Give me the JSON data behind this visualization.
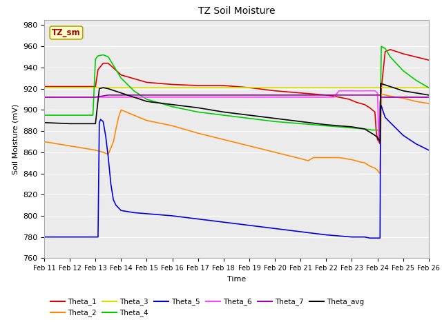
{
  "title": "TZ Soil Moisture",
  "xlabel": "Time",
  "ylabel": "Soil Moisture (mV)",
  "ylim": [
    760,
    985
  ],
  "yticks": [
    760,
    780,
    800,
    820,
    840,
    860,
    880,
    900,
    920,
    940,
    960,
    980
  ],
  "xtick_labels": [
    "Feb 11",
    "Feb 12",
    "Feb 13",
    "Feb 14",
    "Feb 15",
    "Feb 16",
    "Feb 17",
    "Feb 18",
    "Feb 19",
    "Feb 20",
    "Feb 21",
    "Feb 22",
    "Feb 23",
    "Feb 24",
    "Feb 25",
    "Feb 26"
  ],
  "fig_facecolor": "#ffffff",
  "plot_bg_color": "#ebebeb",
  "label_box_text": "TZ_sm",
  "label_box_facecolor": "#ffffcc",
  "label_box_edgecolor": "#b8a000",
  "label_box_textcolor": "#aa0000",
  "series": {
    "Theta_1": {
      "color": "#dd0000",
      "points": [
        [
          0,
          922
        ],
        [
          1.0,
          922
        ],
        [
          2.0,
          922
        ],
        [
          2.1,
          938
        ],
        [
          2.3,
          944
        ],
        [
          2.5,
          944
        ],
        [
          3.0,
          933
        ],
        [
          4.0,
          926
        ],
        [
          5.0,
          924
        ],
        [
          6.0,
          923
        ],
        [
          7.0,
          923
        ],
        [
          8.0,
          921
        ],
        [
          9.0,
          918
        ],
        [
          10.0,
          916
        ],
        [
          10.5,
          915
        ],
        [
          11.0,
          914
        ],
        [
          11.3,
          913
        ],
        [
          11.5,
          912
        ],
        [
          11.7,
          911
        ],
        [
          11.9,
          910
        ],
        [
          12.0,
          909
        ],
        [
          12.2,
          907
        ],
        [
          12.5,
          905
        ],
        [
          12.7,
          902
        ],
        [
          12.8,
          900
        ],
        [
          12.9,
          898
        ],
        [
          12.95,
          880
        ],
        [
          13.0,
          872
        ],
        [
          13.05,
          870
        ],
        [
          13.1,
          868
        ],
        [
          13.15,
          920
        ],
        [
          13.3,
          955
        ],
        [
          13.5,
          957
        ],
        [
          14.0,
          953
        ],
        [
          14.5,
          950
        ],
        [
          15.0,
          947
        ]
      ]
    },
    "Theta_2": {
      "color": "#ff8800",
      "points": [
        [
          0,
          870
        ],
        [
          0.5,
          868
        ],
        [
          1.0,
          866
        ],
        [
          1.5,
          864
        ],
        [
          2.0,
          862
        ],
        [
          2.3,
          860
        ],
        [
          2.5,
          858
        ],
        [
          2.7,
          870
        ],
        [
          2.8,
          882
        ],
        [
          2.9,
          893
        ],
        [
          3.0,
          900
        ],
        [
          3.2,
          898
        ],
        [
          3.5,
          895
        ],
        [
          4.0,
          890
        ],
        [
          5.0,
          885
        ],
        [
          6.0,
          878
        ],
        [
          7.0,
          872
        ],
        [
          8.0,
          866
        ],
        [
          9.0,
          860
        ],
        [
          9.5,
          857
        ],
        [
          10.0,
          854
        ],
        [
          10.3,
          852
        ],
        [
          10.5,
          855
        ],
        [
          11.0,
          855
        ],
        [
          11.5,
          855
        ],
        [
          12.0,
          853
        ],
        [
          12.3,
          851
        ],
        [
          12.5,
          850
        ],
        [
          12.7,
          847
        ],
        [
          12.9,
          845
        ],
        [
          13.0,
          843
        ],
        [
          13.05,
          841
        ],
        [
          13.1,
          840
        ],
        [
          13.15,
          915
        ],
        [
          13.5,
          913
        ],
        [
          14.0,
          911
        ],
        [
          14.5,
          908
        ],
        [
          15.0,
          906
        ]
      ]
    },
    "Theta_3": {
      "color": "#dddd00",
      "points": [
        [
          0,
          921
        ],
        [
          2.0,
          921
        ],
        [
          2.3,
          921
        ],
        [
          2.5,
          921
        ],
        [
          3.0,
          921
        ],
        [
          4.0,
          921
        ],
        [
          5.0,
          921
        ],
        [
          6.0,
          921
        ],
        [
          7.0,
          921
        ],
        [
          8.0,
          921
        ],
        [
          9.0,
          921
        ],
        [
          10.0,
          921
        ],
        [
          11.0,
          921
        ],
        [
          11.5,
          921
        ],
        [
          12.0,
          921
        ],
        [
          12.5,
          921
        ],
        [
          12.9,
          921
        ],
        [
          13.0,
          921
        ],
        [
          13.1,
          921
        ],
        [
          13.15,
          921
        ],
        [
          13.5,
          921
        ],
        [
          14.0,
          921
        ],
        [
          14.5,
          921
        ],
        [
          15.0,
          921
        ]
      ]
    },
    "Theta_4": {
      "color": "#00cc00",
      "points": [
        [
          0,
          895
        ],
        [
          1.0,
          895
        ],
        [
          1.5,
          895
        ],
        [
          1.9,
          895
        ],
        [
          2.0,
          948
        ],
        [
          2.1,
          951
        ],
        [
          2.3,
          952
        ],
        [
          2.5,
          950
        ],
        [
          2.7,
          942
        ],
        [
          3.0,
          930
        ],
        [
          3.5,
          918
        ],
        [
          4.0,
          910
        ],
        [
          5.0,
          903
        ],
        [
          6.0,
          898
        ],
        [
          7.0,
          895
        ],
        [
          8.0,
          892
        ],
        [
          9.0,
          889
        ],
        [
          10.0,
          887
        ],
        [
          11.0,
          885
        ],
        [
          12.0,
          883
        ],
        [
          12.5,
          882
        ],
        [
          12.8,
          881
        ],
        [
          12.9,
          881
        ],
        [
          13.0,
          881
        ],
        [
          13.05,
          880
        ],
        [
          13.1,
          880
        ],
        [
          13.15,
          960
        ],
        [
          13.3,
          958
        ],
        [
          13.5,
          950
        ],
        [
          14.0,
          937
        ],
        [
          14.5,
          928
        ],
        [
          15.0,
          921
        ]
      ]
    },
    "Theta_5": {
      "color": "#0000dd",
      "points": [
        [
          0,
          780
        ],
        [
          1.0,
          780
        ],
        [
          2.0,
          780
        ],
        [
          2.1,
          780
        ],
        [
          2.15,
          888
        ],
        [
          2.2,
          891
        ],
        [
          2.3,
          889
        ],
        [
          2.4,
          875
        ],
        [
          2.5,
          855
        ],
        [
          2.6,
          830
        ],
        [
          2.7,
          815
        ],
        [
          2.8,
          810
        ],
        [
          3.0,
          805
        ],
        [
          3.5,
          803
        ],
        [
          4.0,
          802
        ],
        [
          5.0,
          800
        ],
        [
          6.0,
          797
        ],
        [
          7.0,
          794
        ],
        [
          8.0,
          791
        ],
        [
          9.0,
          788
        ],
        [
          10.0,
          785
        ],
        [
          11.0,
          782
        ],
        [
          11.5,
          781
        ],
        [
          12.0,
          780
        ],
        [
          12.5,
          780
        ],
        [
          12.7,
          779
        ],
        [
          12.9,
          779
        ],
        [
          13.0,
          779
        ],
        [
          13.05,
          779
        ],
        [
          13.1,
          779
        ],
        [
          13.12,
          900
        ],
        [
          13.15,
          904
        ],
        [
          13.2,
          900
        ],
        [
          13.3,
          893
        ],
        [
          13.5,
          888
        ],
        [
          14.0,
          876
        ],
        [
          14.5,
          868
        ],
        [
          15.0,
          862
        ]
      ]
    },
    "Theta_6": {
      "color": "#ff44ff",
      "points": [
        [
          0,
          912
        ],
        [
          2.0,
          912
        ],
        [
          2.5,
          912
        ],
        [
          3.0,
          912
        ],
        [
          4.0,
          912
        ],
        [
          5.0,
          912
        ],
        [
          6.0,
          912
        ],
        [
          7.0,
          912
        ],
        [
          8.0,
          912
        ],
        [
          9.0,
          912
        ],
        [
          10.0,
          912
        ],
        [
          11.0,
          912
        ],
        [
          11.3,
          912
        ],
        [
          11.5,
          918
        ],
        [
          12.0,
          918
        ],
        [
          12.5,
          918
        ],
        [
          12.7,
          918
        ],
        [
          12.8,
          918
        ],
        [
          12.9,
          918
        ],
        [
          13.0,
          916
        ],
        [
          13.05,
          870
        ],
        [
          13.1,
          908
        ],
        [
          13.15,
          912
        ],
        [
          13.5,
          912
        ],
        [
          14.0,
          912
        ],
        [
          14.5,
          912
        ],
        [
          15.0,
          912
        ]
      ]
    },
    "Theta_7": {
      "color": "#9900aa",
      "points": [
        [
          0,
          912
        ],
        [
          2.0,
          912
        ],
        [
          2.5,
          914
        ],
        [
          3.0,
          914
        ],
        [
          4.0,
          914
        ],
        [
          5.0,
          914
        ],
        [
          6.0,
          914
        ],
        [
          7.0,
          914
        ],
        [
          8.0,
          914
        ],
        [
          9.0,
          914
        ],
        [
          10.0,
          914
        ],
        [
          11.0,
          914
        ],
        [
          11.5,
          914
        ],
        [
          12.0,
          914
        ],
        [
          12.5,
          914
        ],
        [
          12.9,
          914
        ],
        [
          13.0,
          914
        ],
        [
          13.1,
          914
        ],
        [
          13.15,
          912
        ],
        [
          13.5,
          912
        ],
        [
          14.0,
          912
        ],
        [
          14.5,
          912
        ],
        [
          15.0,
          912
        ]
      ]
    },
    "Theta_avg": {
      "color": "#000000",
      "points": [
        [
          0,
          888
        ],
        [
          1.0,
          887
        ],
        [
          1.5,
          887
        ],
        [
          2.0,
          887
        ],
        [
          2.15,
          920
        ],
        [
          2.3,
          921
        ],
        [
          2.5,
          920
        ],
        [
          3.0,
          916
        ],
        [
          3.5,
          912
        ],
        [
          4.0,
          908
        ],
        [
          5.0,
          905
        ],
        [
          6.0,
          902
        ],
        [
          7.0,
          898
        ],
        [
          8.0,
          895
        ],
        [
          9.0,
          892
        ],
        [
          10.0,
          889
        ],
        [
          11.0,
          886
        ],
        [
          11.5,
          885
        ],
        [
          12.0,
          884
        ],
        [
          12.5,
          882
        ],
        [
          12.7,
          879
        ],
        [
          12.9,
          876
        ],
        [
          13.0,
          874
        ],
        [
          13.05,
          872
        ],
        [
          13.1,
          870
        ],
        [
          13.12,
          925
        ],
        [
          13.5,
          922
        ],
        [
          14.0,
          918
        ],
        [
          14.5,
          916
        ],
        [
          15.0,
          914
        ]
      ]
    }
  },
  "series_order": [
    "Theta_1",
    "Theta_2",
    "Theta_3",
    "Theta_4",
    "Theta_5",
    "Theta_6",
    "Theta_7",
    "Theta_avg"
  ],
  "legend_row1": [
    "Theta_1",
    "Theta_2",
    "Theta_3",
    "Theta_4",
    "Theta_5",
    "Theta_6"
  ],
  "legend_row2": [
    "Theta_7",
    "Theta_avg"
  ]
}
